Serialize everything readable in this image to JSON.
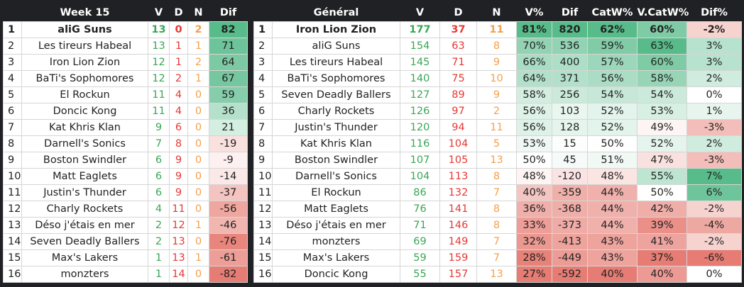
{
  "week": {
    "headers": {
      "rank": "",
      "team": "Week 15",
      "v": "V",
      "d": "D",
      "n": "N",
      "dif": "Dif"
    },
    "rows": [
      {
        "rank": "1",
        "team": "aliG Suns",
        "v": "13",
        "d": "0",
        "n": "2",
        "dif": "82"
      },
      {
        "rank": "2",
        "team": "Les tireurs Habeal",
        "v": "13",
        "d": "1",
        "n": "1",
        "dif": "71"
      },
      {
        "rank": "3",
        "team": "Iron Lion Zion",
        "v": "12",
        "d": "1",
        "n": "2",
        "dif": "64"
      },
      {
        "rank": "4",
        "team": "BaTi's Sophomores",
        "v": "12",
        "d": "2",
        "n": "1",
        "dif": "67"
      },
      {
        "rank": "5",
        "team": "El Rockun",
        "v": "11",
        "d": "4",
        "n": "0",
        "dif": "59"
      },
      {
        "rank": "6",
        "team": "Doncic Kong",
        "v": "11",
        "d": "4",
        "n": "0",
        "dif": "36"
      },
      {
        "rank": "7",
        "team": "Kat Khris Klan",
        "v": "9",
        "d": "6",
        "n": "0",
        "dif": "21"
      },
      {
        "rank": "8",
        "team": "Darnell's Sonics",
        "v": "7",
        "d": "8",
        "n": "0",
        "dif": "-19"
      },
      {
        "rank": "9",
        "team": "Boston Swindler",
        "v": "6",
        "d": "9",
        "n": "0",
        "dif": "-9"
      },
      {
        "rank": "10",
        "team": "Matt Eaglets",
        "v": "6",
        "d": "9",
        "n": "0",
        "dif": "-14"
      },
      {
        "rank": "11",
        "team": "Justin's Thunder",
        "v": "6",
        "d": "9",
        "n": "0",
        "dif": "-37"
      },
      {
        "rank": "12",
        "team": "Charly Rockets",
        "v": "4",
        "d": "11",
        "n": "0",
        "dif": "-56"
      },
      {
        "rank": "13",
        "team": "Déso j'étais en mer",
        "v": "2",
        "d": "12",
        "n": "1",
        "dif": "-46"
      },
      {
        "rank": "14",
        "team": "Seven Deadly Ballers",
        "v": "2",
        "d": "13",
        "n": "0",
        "dif": "-76"
      },
      {
        "rank": "15",
        "team": "Max's Lakers",
        "v": "1",
        "d": "13",
        "n": "1",
        "dif": "-61"
      },
      {
        "rank": "16",
        "team": "monzters",
        "v": "1",
        "d": "14",
        "n": "0",
        "dif": "-82"
      }
    ]
  },
  "general": {
    "headers": {
      "rank": "",
      "team": "Général",
      "v": "V",
      "d": "D",
      "n": "N",
      "vpct": "V%",
      "dif": "Dif",
      "catw": "CatW%",
      "vcatw": "V.CatW%",
      "difpct": "Dif%"
    },
    "rows": [
      {
        "rank": "1",
        "team": "Iron Lion Zion",
        "v": "177",
        "d": "37",
        "n": "11",
        "vpct": "81%",
        "dif": "820",
        "catw": "62%",
        "vcatw": "60%",
        "difpct": "-2%"
      },
      {
        "rank": "2",
        "team": "aliG Suns",
        "v": "154",
        "d": "63",
        "n": "8",
        "vpct": "70%",
        "dif": "536",
        "catw": "59%",
        "vcatw": "63%",
        "difpct": "3%"
      },
      {
        "rank": "3",
        "team": "Les tireurs Habeal",
        "v": "145",
        "d": "71",
        "n": "9",
        "vpct": "66%",
        "dif": "400",
        "catw": "57%",
        "vcatw": "60%",
        "difpct": "3%"
      },
      {
        "rank": "4",
        "team": "BaTi's Sophomores",
        "v": "140",
        "d": "75",
        "n": "10",
        "vpct": "64%",
        "dif": "371",
        "catw": "56%",
        "vcatw": "58%",
        "difpct": "2%"
      },
      {
        "rank": "5",
        "team": "Seven Deadly Ballers",
        "v": "127",
        "d": "89",
        "n": "9",
        "vpct": "58%",
        "dif": "256",
        "catw": "54%",
        "vcatw": "54%",
        "difpct": "0%"
      },
      {
        "rank": "6",
        "team": "Charly Rockets",
        "v": "126",
        "d": "97",
        "n": "2",
        "vpct": "56%",
        "dif": "103",
        "catw": "52%",
        "vcatw": "53%",
        "difpct": "1%"
      },
      {
        "rank": "7",
        "team": "Justin's Thunder",
        "v": "120",
        "d": "94",
        "n": "11",
        "vpct": "56%",
        "dif": "128",
        "catw": "52%",
        "vcatw": "49%",
        "difpct": "-3%"
      },
      {
        "rank": "8",
        "team": "Kat Khris Klan",
        "v": "116",
        "d": "104",
        "n": "5",
        "vpct": "53%",
        "dif": "15",
        "catw": "50%",
        "vcatw": "52%",
        "difpct": "2%"
      },
      {
        "rank": "9",
        "team": "Boston Swindler",
        "v": "107",
        "d": "105",
        "n": "13",
        "vpct": "50%",
        "dif": "45",
        "catw": "51%",
        "vcatw": "47%",
        "difpct": "-3%"
      },
      {
        "rank": "10",
        "team": "Darnell's Sonics",
        "v": "104",
        "d": "113",
        "n": "8",
        "vpct": "48%",
        "dif": "-120",
        "catw": "48%",
        "vcatw": "55%",
        "difpct": "7%"
      },
      {
        "rank": "11",
        "team": "El Rockun",
        "v": "86",
        "d": "132",
        "n": "7",
        "vpct": "40%",
        "dif": "-359",
        "catw": "44%",
        "vcatw": "50%",
        "difpct": "6%"
      },
      {
        "rank": "12",
        "team": "Matt Eaglets",
        "v": "76",
        "d": "141",
        "n": "8",
        "vpct": "36%",
        "dif": "-368",
        "catw": "44%",
        "vcatw": "42%",
        "difpct": "-2%"
      },
      {
        "rank": "13",
        "team": "Déso j'étais en mer",
        "v": "71",
        "d": "146",
        "n": "8",
        "vpct": "33%",
        "dif": "-373",
        "catw": "44%",
        "vcatw": "39%",
        "difpct": "-4%"
      },
      {
        "rank": "14",
        "team": "monzters",
        "v": "69",
        "d": "149",
        "n": "7",
        "vpct": "32%",
        "dif": "-413",
        "catw": "43%",
        "vcatw": "41%",
        "difpct": "-2%"
      },
      {
        "rank": "15",
        "team": "Max's Lakers",
        "v": "59",
        "d": "159",
        "n": "7",
        "vpct": "28%",
        "dif": "-449",
        "catw": "43%",
        "vcatw": "37%",
        "difpct": "-6%"
      },
      {
        "rank": "16",
        "team": "Doncic Kong",
        "v": "55",
        "d": "157",
        "n": "13",
        "vpct": "27%",
        "dif": "-592",
        "catw": "40%",
        "vcatw": "40%",
        "difpct": "0%"
      }
    ]
  },
  "colors": {
    "page_bg": "#202124",
    "header_text": "#ffffff",
    "win_green": "#3aa655",
    "loss_red": "#e53935",
    "draw_orange": "#f4a04a",
    "scale_high": "#57bb8a",
    "scale_mid": "#ffffff",
    "scale_low": "#e67c73"
  }
}
